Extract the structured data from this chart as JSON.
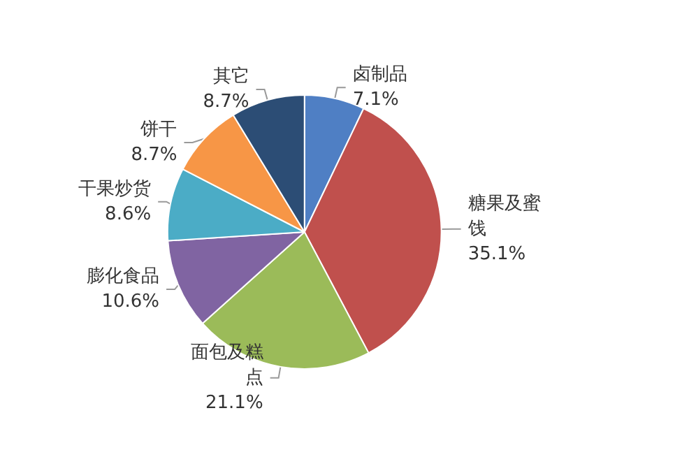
{
  "chart_data": {
    "type": "pie",
    "categories": [
      "卤制品",
      "糖果及蜜饯",
      "面包及糕点",
      "膨化食品",
      "干果炒货",
      "饼干",
      "其它"
    ],
    "values": [
      7.1,
      35.1,
      21.1,
      10.6,
      8.6,
      8.7,
      8.7
    ],
    "value_labels": [
      "7.1%",
      "35.1%",
      "21.1%",
      "10.6%",
      "8.6%",
      "8.7%",
      "8.7%"
    ],
    "colors": [
      "#4f7fc4",
      "#c0504d",
      "#9bbb59",
      "#8064a2",
      "#4bacc6",
      "#f79646",
      "#2c4d75"
    ],
    "legend": false
  }
}
